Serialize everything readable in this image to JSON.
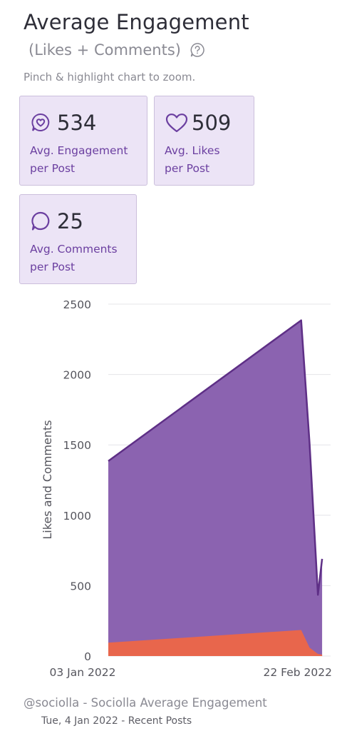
{
  "header": {
    "title": "Average Engagement",
    "subtitle": "(Likes + Comments)",
    "help_icon": "question-bubble-icon",
    "hint": "Pinch & highlight chart to zoom."
  },
  "stats": [
    {
      "icon": "heart-bubble-icon",
      "value": "534",
      "label": "Avg. Engagement\nper Post"
    },
    {
      "icon": "heart-icon",
      "value": "509",
      "label": "Avg. Likes\nper Post"
    },
    {
      "icon": "comment-bubble-icon",
      "value": "25",
      "label": "Avg. Comments\nper Post"
    }
  ],
  "colors": {
    "card_bg": "#ece4f6",
    "card_border": "#cbbfdc",
    "accent": "#6b3fa0",
    "likes_fill": "#8b63b0",
    "likes_stroke": "#5e2f86",
    "comments_fill": "#e8664c"
  },
  "chart_data": {
    "type": "area",
    "ylabel": "Likes and Comments",
    "xlabel": "",
    "ylim": [
      0,
      2500
    ],
    "yticks": [
      "2500",
      "2000",
      "1500",
      "1000",
      "500",
      "0"
    ],
    "x_tick_labels": [
      "03 Jan 2022",
      "22 Feb 2022"
    ],
    "grid": true,
    "stacked": true,
    "x_domain": [
      "2022-01-03",
      "2022-02-24"
    ],
    "series": [
      {
        "x": [
          "2022-01-03",
          "2022-02-18",
          "2022-02-20",
          "2022-02-22",
          "2022-02-23"
        ],
        "values": [
          1290,
          2200,
          1450,
          420,
          680
        ],
        "color": "#8b63b0"
      },
      {
        "x": [
          "2022-01-03",
          "2022-02-18",
          "2022-02-20",
          "2022-02-22",
          "2022-02-23"
        ],
        "values": [
          95,
          185,
          60,
          15,
          10
        ],
        "color": "#e8664c"
      }
    ]
  },
  "footer": {
    "source": "@sociolla - Sociolla Average Engagement",
    "date_line": "Tue, 4 Jan 2022 - Recent Posts"
  }
}
